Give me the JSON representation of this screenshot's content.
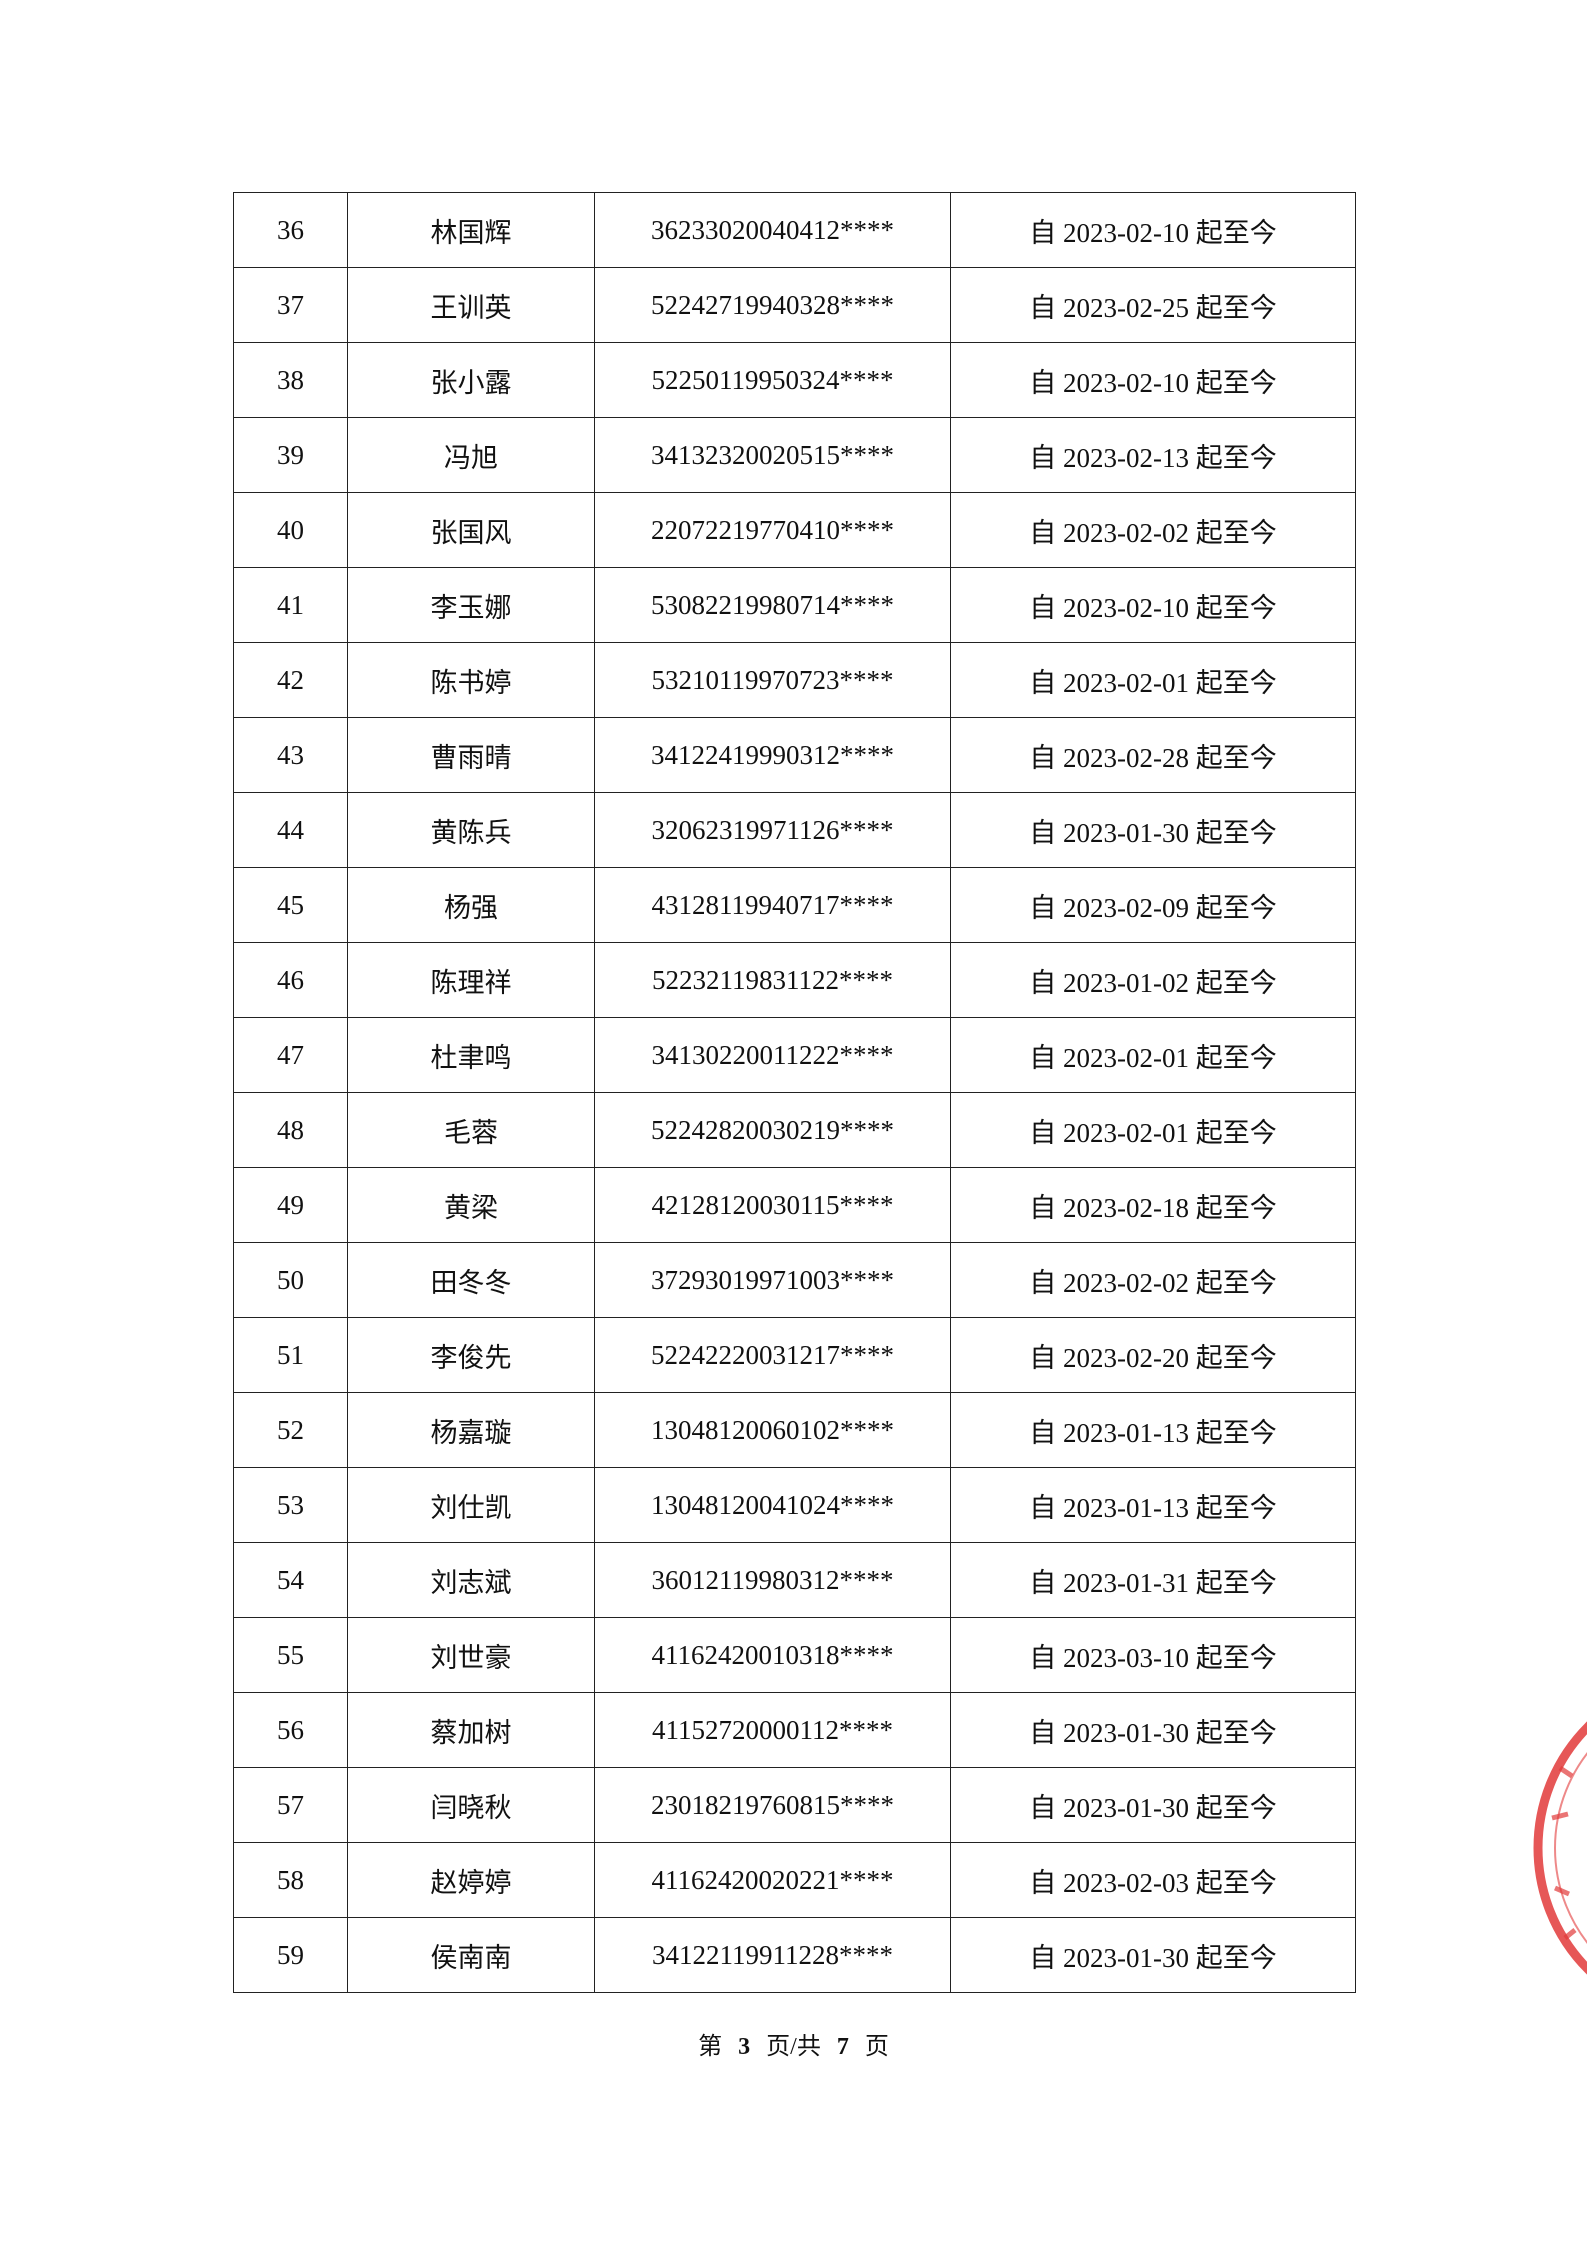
{
  "table": {
    "rows": [
      [
        "36",
        "林国辉",
        "36233020040412****",
        "自 2023-02-10 起至今"
      ],
      [
        "37",
        "王训英",
        "52242719940328****",
        "自 2023-02-25 起至今"
      ],
      [
        "38",
        "张小露",
        "52250119950324****",
        "自 2023-02-10 起至今"
      ],
      [
        "39",
        "冯旭",
        "34132320020515****",
        "自 2023-02-13 起至今"
      ],
      [
        "40",
        "张国风",
        "22072219770410****",
        "自 2023-02-02 起至今"
      ],
      [
        "41",
        "李玉娜",
        "53082219980714****",
        "自 2023-02-10 起至今"
      ],
      [
        "42",
        "陈书婷",
        "53210119970723****",
        "自 2023-02-01 起至今"
      ],
      [
        "43",
        "曹雨晴",
        "34122419990312****",
        "自 2023-02-28 起至今"
      ],
      [
        "44",
        "黄陈兵",
        "32062319971126****",
        "自 2023-01-30 起至今"
      ],
      [
        "45",
        "杨强",
        "43128119940717****",
        "自 2023-02-09 起至今"
      ],
      [
        "46",
        "陈理祥",
        "52232119831122****",
        "自 2023-01-02 起至今"
      ],
      [
        "47",
        "杜聿鸣",
        "34130220011222****",
        "自 2023-02-01 起至今"
      ],
      [
        "48",
        "毛蓉",
        "52242820030219****",
        "自 2023-02-01 起至今"
      ],
      [
        "49",
        "黄梁",
        "42128120030115****",
        "自 2023-02-18 起至今"
      ],
      [
        "50",
        "田冬冬",
        "37293019971003****",
        "自 2023-02-02 起至今"
      ],
      [
        "51",
        "李俊先",
        "52242220031217****",
        "自 2023-02-20 起至今"
      ],
      [
        "52",
        "杨嘉璇",
        "13048120060102****",
        "自 2023-01-13 起至今"
      ],
      [
        "53",
        "刘仕凯",
        "13048120041024****",
        "自 2023-01-13 起至今"
      ],
      [
        "54",
        "刘志斌",
        "36012119980312****",
        "自 2023-01-31 起至今"
      ],
      [
        "55",
        "刘世豪",
        "41162420010318****",
        "自 2023-03-10 起至今"
      ],
      [
        "56",
        "蔡加树",
        "41152720000112****",
        "自 2023-01-30 起至今"
      ],
      [
        "57",
        "闫晓秋",
        "23018219760815****",
        "自 2023-01-30 起至今"
      ],
      [
        "58",
        "赵婷婷",
        "41162420020221****",
        "自 2023-02-03 起至今"
      ],
      [
        "59",
        "侯南南",
        "34122119911228****",
        "自 2023-01-30 起至今"
      ]
    ]
  },
  "footer": {
    "prefix": "第",
    "page": "3",
    "middle": "页/共",
    "total": "7",
    "suffix": "页"
  }
}
